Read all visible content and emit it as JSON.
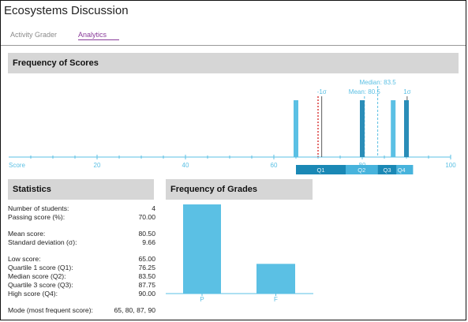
{
  "app": {
    "title": "Ecosystems Discussion"
  },
  "tabs": [
    {
      "label": "Activity Grader",
      "active": false
    },
    {
      "label": "Analytics",
      "active": true
    }
  ],
  "score_panel": {
    "title": "Frequency of Scores"
  },
  "statistics_panel": {
    "title": "Statistics",
    "rows": [
      {
        "label": "Number of students:",
        "value": "4"
      },
      {
        "label": "Passing score (%):",
        "value": "70.00"
      },
      {
        "label": "Mean score:",
        "value": "80.50"
      },
      {
        "label": "Standard deviation (σ):",
        "value": "9.66"
      },
      {
        "label": "Low score:",
        "value": "65.00"
      },
      {
        "label": "Quartile 1 score (Q1):",
        "value": "76.25"
      },
      {
        "label": "Median score (Q2):",
        "value": "83.50"
      },
      {
        "label": "Quartile 3 score (Q3):",
        "value": "87.75"
      },
      {
        "label": "High score (Q4):",
        "value": "90.00"
      },
      {
        "label": "Mode (most frequent score):",
        "value": "65, 80, 87, 90"
      }
    ]
  },
  "grades_panel": {
    "title": "Frequency of Grades"
  },
  "colors": {
    "bar": "#5bc0e4",
    "bar_dark": "#2a8db8",
    "passing_line": "#d93030",
    "mean_line": "#5bc0e4",
    "q_dark": "#1a88b5",
    "q_light": "#47b3dc"
  },
  "chart_data": [
    {
      "type": "bar",
      "title": "Frequency of Scores",
      "xlabel": "Score",
      "xlim": [
        0,
        100
      ],
      "x_ticks": [
        20,
        40,
        60,
        80,
        100
      ],
      "scores": [
        65,
        80,
        87,
        90
      ],
      "highlighted_scores": [
        80,
        90
      ],
      "annotations": {
        "passing_score": 70,
        "mean": {
          "label": "Mean: 80.5",
          "value": 80.5
        },
        "median": {
          "label": "Median: 83.5",
          "value": 83.5
        },
        "minus_sigma": {
          "label": "-1σ",
          "value": 70.84
        },
        "plus_sigma": {
          "label": "1σ",
          "value": 90.16
        }
      },
      "quartiles": [
        {
          "label": "Q1",
          "from": 65,
          "to": 76.25
        },
        {
          "label": "Q2",
          "from": 76.25,
          "to": 83.5
        },
        {
          "label": "Q3",
          "from": 83.5,
          "to": 87.75
        },
        {
          "label": "Q4",
          "from": 87.75,
          "to": 90
        }
      ]
    },
    {
      "type": "bar",
      "title": "Frequency of Grades",
      "categories": [
        "P",
        "F"
      ],
      "values": [
        3,
        1
      ]
    }
  ]
}
